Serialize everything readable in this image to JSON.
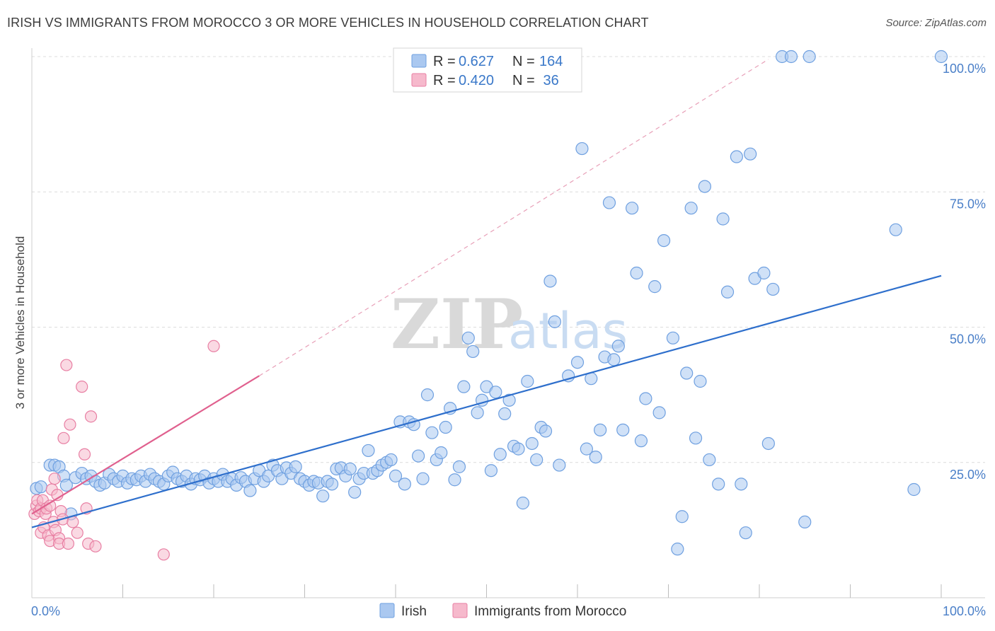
{
  "title": "IRISH VS IMMIGRANTS FROM MOROCCO 3 OR MORE VEHICLES IN HOUSEHOLD CORRELATION CHART",
  "source": "Source: ZipAtlas.com",
  "watermark": {
    "part1": "ZIP",
    "part2": "atlas"
  },
  "colors": {
    "irish": "#6fa0e0",
    "irish_fill": "#aac8f0",
    "irish_line": "#2e6fcc",
    "morocco": "#e87fa3",
    "morocco_fill": "#f6b9cc",
    "morocco_line": "#e0608e",
    "grid": "#dcdcdc",
    "tick_text": "#4a7fc8"
  },
  "legend": {
    "rows": [
      {
        "r_label": "R = ",
        "r_value": "0.627",
        "n_label": "N = ",
        "n_value": "164"
      },
      {
        "r_label": "R = ",
        "r_value": "0.420",
        "n_label": "N = ",
        "n_value": " 36"
      }
    ]
  },
  "bottom_legend": [
    "Irish",
    "Immigrants from Morocco"
  ],
  "chart_data": {
    "type": "scatter",
    "title": "IRISH VS IMMIGRANTS FROM MOROCCO 3 OR MORE VEHICLES IN HOUSEHOLD CORRELATION CHART",
    "xlabel": "",
    "ylabel": "3 or more Vehicles in Household",
    "xlim": [
      0,
      100
    ],
    "ylim": [
      0,
      100
    ],
    "x_tick_labels": [
      "0.0%",
      "100.0%"
    ],
    "y_tick_labels": [
      "25.0%",
      "50.0%",
      "75.0%",
      "100.0%"
    ],
    "y_ticks": [
      25,
      50,
      75,
      100
    ],
    "grid": true,
    "legend_position": "top-center",
    "series": [
      {
        "name": "Irish",
        "R": 0.627,
        "N": 164,
        "trend": {
          "x": [
            0,
            100
          ],
          "y": [
            13.0,
            59.5
          ]
        },
        "points": [
          [
            0.5,
            20.2
          ],
          [
            1.0,
            20.5
          ],
          [
            2.0,
            24.5
          ],
          [
            2.5,
            24.5
          ],
          [
            3.0,
            24.2
          ],
          [
            3.5,
            22.5
          ],
          [
            3.8,
            20.8
          ],
          [
            4.3,
            15.5
          ],
          [
            4.8,
            22.2
          ],
          [
            5.5,
            23.0
          ],
          [
            6.0,
            22.0
          ],
          [
            6.5,
            22.5
          ],
          [
            7.0,
            21.5
          ],
          [
            7.5,
            20.8
          ],
          [
            8.0,
            21.2
          ],
          [
            8.5,
            22.8
          ],
          [
            9.0,
            22.0
          ],
          [
            9.5,
            21.5
          ],
          [
            10.0,
            22.5
          ],
          [
            10.5,
            21.2
          ],
          [
            11.0,
            22.0
          ],
          [
            11.5,
            21.8
          ],
          [
            12.0,
            22.5
          ],
          [
            12.5,
            21.5
          ],
          [
            13.0,
            22.8
          ],
          [
            13.5,
            22.0
          ],
          [
            14.0,
            21.5
          ],
          [
            14.5,
            21.0
          ],
          [
            15.0,
            22.5
          ],
          [
            15.5,
            23.2
          ],
          [
            16.0,
            22.0
          ],
          [
            16.5,
            21.5
          ],
          [
            17.0,
            22.5
          ],
          [
            17.5,
            21.0
          ],
          [
            18.0,
            22.0
          ],
          [
            18.5,
            21.8
          ],
          [
            19.0,
            22.5
          ],
          [
            19.5,
            21.2
          ],
          [
            20.0,
            22.0
          ],
          [
            20.5,
            21.5
          ],
          [
            21.0,
            22.8
          ],
          [
            21.5,
            21.5
          ],
          [
            22.0,
            22.0
          ],
          [
            22.5,
            20.8
          ],
          [
            23.0,
            22.2
          ],
          [
            23.5,
            21.5
          ],
          [
            24.0,
            19.8
          ],
          [
            24.5,
            22.0
          ],
          [
            25.0,
            23.5
          ],
          [
            25.5,
            21.5
          ],
          [
            26.0,
            22.5
          ],
          [
            26.5,
            24.5
          ],
          [
            27.0,
            23.5
          ],
          [
            27.5,
            22.0
          ],
          [
            28.0,
            24.0
          ],
          [
            28.5,
            23.0
          ],
          [
            29.0,
            24.2
          ],
          [
            29.5,
            22.0
          ],
          [
            30.0,
            21.5
          ],
          [
            30.5,
            20.8
          ],
          [
            31.0,
            21.5
          ],
          [
            31.5,
            21.2
          ],
          [
            32.0,
            18.8
          ],
          [
            32.5,
            21.5
          ],
          [
            33.0,
            21.0
          ],
          [
            33.5,
            23.8
          ],
          [
            34.0,
            24.0
          ],
          [
            34.5,
            22.5
          ],
          [
            35.0,
            23.8
          ],
          [
            35.5,
            19.5
          ],
          [
            36.0,
            22.0
          ],
          [
            36.5,
            23.0
          ],
          [
            37.0,
            27.2
          ],
          [
            37.5,
            23.0
          ],
          [
            38.0,
            23.5
          ],
          [
            38.5,
            24.5
          ],
          [
            39.0,
            25.0
          ],
          [
            39.5,
            25.5
          ],
          [
            40.0,
            22.5
          ],
          [
            40.5,
            32.5
          ],
          [
            41.0,
            21.0
          ],
          [
            41.5,
            32.5
          ],
          [
            42.0,
            32.0
          ],
          [
            42.5,
            26.2
          ],
          [
            43.0,
            22.0
          ],
          [
            43.5,
            37.5
          ],
          [
            44.0,
            30.5
          ],
          [
            44.5,
            25.5
          ],
          [
            45.0,
            26.8
          ],
          [
            45.5,
            31.5
          ],
          [
            46.0,
            35.0
          ],
          [
            46.5,
            21.8
          ],
          [
            47.0,
            24.2
          ],
          [
            47.5,
            39.0
          ],
          [
            48.0,
            48.0
          ],
          [
            48.5,
            45.5
          ],
          [
            49.0,
            34.2
          ],
          [
            49.5,
            36.5
          ],
          [
            50.0,
            39.0
          ],
          [
            50.5,
            23.5
          ],
          [
            51.0,
            38.0
          ],
          [
            51.5,
            26.5
          ],
          [
            52.0,
            34.0
          ],
          [
            52.5,
            36.5
          ],
          [
            53.0,
            28.0
          ],
          [
            53.5,
            27.5
          ],
          [
            54.0,
            17.5
          ],
          [
            54.5,
            40.0
          ],
          [
            55.0,
            28.5
          ],
          [
            55.5,
            25.5
          ],
          [
            56.0,
            31.5
          ],
          [
            56.5,
            30.8
          ],
          [
            57.0,
            58.5
          ],
          [
            57.5,
            51.0
          ],
          [
            58.0,
            24.5
          ],
          [
            59.0,
            41.0
          ],
          [
            60.0,
            43.5
          ],
          [
            60.5,
            83.0
          ],
          [
            61.0,
            27.5
          ],
          [
            61.5,
            40.5
          ],
          [
            62.0,
            26.0
          ],
          [
            62.5,
            31.0
          ],
          [
            63.0,
            44.5
          ],
          [
            63.5,
            73.0
          ],
          [
            64.0,
            44.0
          ],
          [
            64.5,
            46.5
          ],
          [
            65.0,
            31.0
          ],
          [
            66.0,
            72.0
          ],
          [
            66.5,
            60.0
          ],
          [
            67.0,
            29.0
          ],
          [
            67.5,
            36.8
          ],
          [
            68.5,
            57.5
          ],
          [
            69.0,
            34.2
          ],
          [
            69.5,
            66.0
          ],
          [
            70.5,
            48.0
          ],
          [
            71.0,
            9.0
          ],
          [
            71.5,
            15.0
          ],
          [
            72.0,
            41.5
          ],
          [
            72.5,
            72.0
          ],
          [
            73.0,
            29.5
          ],
          [
            73.5,
            40.0
          ],
          [
            74.0,
            76.0
          ],
          [
            74.5,
            25.5
          ],
          [
            75.5,
            21.0
          ],
          [
            76.0,
            70.0
          ],
          [
            76.5,
            56.5
          ],
          [
            77.5,
            81.5
          ],
          [
            78.0,
            21.0
          ],
          [
            78.5,
            12.0
          ],
          [
            79.0,
            82.0
          ],
          [
            79.5,
            59.0
          ],
          [
            80.5,
            60.0
          ],
          [
            81.0,
            28.5
          ],
          [
            81.5,
            57.0
          ],
          [
            82.5,
            100.0
          ],
          [
            83.5,
            100.0
          ],
          [
            85.0,
            14.0
          ],
          [
            85.5,
            100.0
          ],
          [
            95.0,
            68.0
          ],
          [
            97.0,
            20.0
          ],
          [
            100.0,
            100.0
          ]
        ]
      },
      {
        "name": "Immigrants from Morocco",
        "R": 0.42,
        "N": 36,
        "trend": {
          "x": [
            0,
            25
          ],
          "y": [
            15.5,
            41.0
          ]
        },
        "trend_extension": {
          "x": [
            25,
            81
          ],
          "y": [
            41.0,
            99.5
          ]
        },
        "points": [
          [
            0.3,
            15.5
          ],
          [
            0.5,
            17.0
          ],
          [
            0.6,
            18.0
          ],
          [
            0.8,
            16.0
          ],
          [
            1.0,
            12.0
          ],
          [
            1.0,
            16.5
          ],
          [
            1.2,
            18.0
          ],
          [
            1.3,
            13.0
          ],
          [
            1.5,
            15.5
          ],
          [
            1.6,
            16.5
          ],
          [
            1.8,
            11.5
          ],
          [
            2.0,
            17.0
          ],
          [
            2.0,
            10.5
          ],
          [
            2.2,
            20.0
          ],
          [
            2.4,
            14.0
          ],
          [
            2.5,
            22.0
          ],
          [
            2.6,
            12.5
          ],
          [
            2.8,
            19.0
          ],
          [
            3.0,
            11.0
          ],
          [
            3.0,
            10.0
          ],
          [
            3.2,
            16.0
          ],
          [
            3.4,
            14.5
          ],
          [
            3.5,
            29.5
          ],
          [
            3.8,
            43.0
          ],
          [
            4.0,
            10.0
          ],
          [
            4.2,
            32.0
          ],
          [
            4.5,
            14.0
          ],
          [
            5.0,
            12.0
          ],
          [
            5.5,
            39.0
          ],
          [
            5.8,
            26.5
          ],
          [
            6.0,
            16.5
          ],
          [
            6.2,
            10.0
          ],
          [
            6.5,
            33.5
          ],
          [
            7.0,
            9.5
          ],
          [
            14.5,
            8.0
          ],
          [
            20.0,
            46.5
          ]
        ]
      }
    ]
  }
}
